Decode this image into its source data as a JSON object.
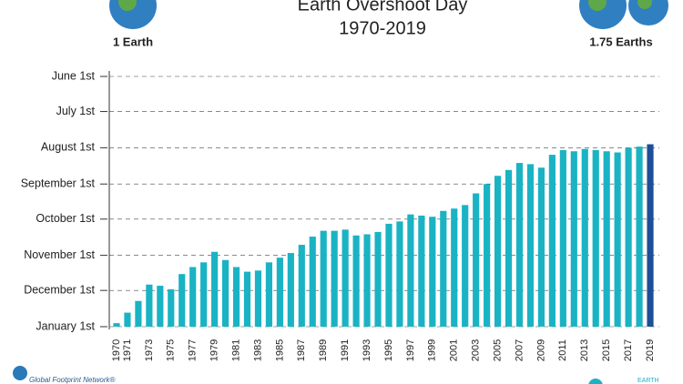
{
  "chart_data": {
    "type": "bar",
    "title": "Earth Overshoot Day",
    "subtitle": "1970-2019",
    "annotations": [
      "1 Earth",
      "1.75 Earths",
      "Global Footprint Network®",
      "EARTH"
    ],
    "categories": [
      "1970",
      "1971",
      null,
      "1973",
      null,
      "1975",
      null,
      "1977",
      null,
      "1979",
      null,
      "1981",
      null,
      "1983",
      null,
      "1985",
      null,
      "1987",
      null,
      "1989",
      null,
      "1991",
      null,
      "1993",
      null,
      "1995",
      null,
      "1997",
      null,
      "1999",
      null,
      "2001",
      null,
      "2003",
      null,
      "2005",
      null,
      "2007",
      null,
      "2009",
      null,
      "2011",
      null,
      "2013",
      null,
      "2015",
      null,
      "2017",
      null,
      "2019"
    ],
    "values": [
      363,
      354,
      344,
      330,
      331,
      334,
      321,
      315,
      311,
      302,
      309,
      315,
      319,
      318,
      311,
      307,
      303,
      296,
      289,
      284,
      284,
      283,
      288,
      287,
      285,
      278,
      276,
      270,
      271,
      272,
      267,
      265,
      262,
      252,
      244,
      237,
      232,
      226,
      227,
      230,
      219,
      215,
      216,
      214,
      215,
      216,
      217,
      213,
      212,
      210
    ],
    "colors": {
      "bar": "#1ab3c4",
      "last": "#1c4f96"
    },
    "ylim": [
      366,
      152
    ],
    "yticks": [
      {
        "value": 366,
        "label": "January 1st"
      },
      {
        "value": 335,
        "label": "December 1st"
      },
      {
        "value": 305,
        "label": "November 1st"
      },
      {
        "value": 274,
        "label": "October 1st"
      },
      {
        "value": 244,
        "label": "September 1st"
      },
      {
        "value": 213,
        "label": "August 1st"
      },
      {
        "value": 182,
        "label": "July 1st"
      },
      {
        "value": 152,
        "label": "June 1st"
      }
    ]
  }
}
